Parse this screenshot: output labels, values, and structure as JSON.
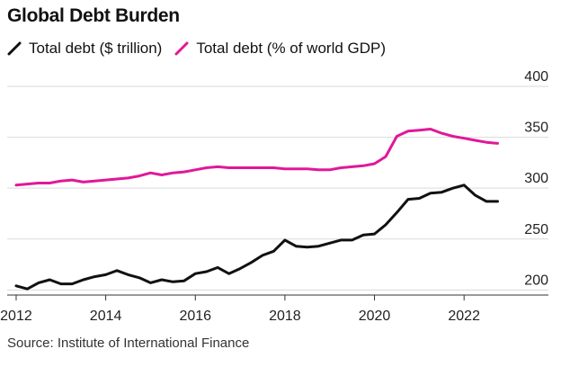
{
  "title": "Global Debt Burden",
  "source": "Source: Institute of International Finance",
  "colors": {
    "debt_trillion": "#111111",
    "debt_pct_gdp": "#e0189a",
    "grid": "#d9d9d9"
  },
  "chart_data": {
    "type": "line",
    "title": "Global Debt Burden",
    "legend_position": "top-left",
    "grid": true,
    "yaxis_position": "right",
    "xlim": [
      2011.8,
      2023.0
    ],
    "xticks": [
      2012,
      2014,
      2016,
      2018,
      2020,
      2022
    ],
    "xtick_labels": [
      "2012",
      "2014",
      "2016",
      "2018",
      "2020",
      "2022"
    ],
    "ylim": [
      195,
      400
    ],
    "yticks": [
      200,
      250,
      300,
      350,
      400
    ],
    "ytick_labels": [
      "200",
      "250",
      "300",
      "350",
      "400"
    ],
    "series": [
      {
        "name": "Total debt ($ trillion)",
        "color": "#111111",
        "x": [
          2012.0,
          2012.25,
          2012.5,
          2012.75,
          2013.0,
          2013.25,
          2013.5,
          2013.75,
          2014.0,
          2014.25,
          2014.5,
          2014.75,
          2015.0,
          2015.25,
          2015.5,
          2015.75,
          2016.0,
          2016.25,
          2016.5,
          2016.75,
          2017.0,
          2017.25,
          2017.5,
          2017.75,
          2018.0,
          2018.25,
          2018.5,
          2018.75,
          2019.0,
          2019.25,
          2019.5,
          2019.75,
          2020.0,
          2020.25,
          2020.5,
          2020.75,
          2021.0,
          2021.25,
          2021.5,
          2021.75,
          2022.0,
          2022.25,
          2022.5,
          2022.75
        ],
        "values": [
          204,
          201,
          207,
          210,
          206,
          206,
          210,
          213,
          215,
          219,
          215,
          212,
          207,
          210,
          208,
          209,
          216,
          218,
          222,
          216,
          221,
          227,
          234,
          238,
          249,
          243,
          242,
          243,
          246,
          249,
          249,
          254,
          255,
          264,
          276,
          289,
          290,
          295,
          296,
          300,
          303,
          293,
          287,
          287
        ]
      },
      {
        "name": "Total debt (% of world GDP)",
        "color": "#e0189a",
        "x": [
          2012.0,
          2012.25,
          2012.5,
          2012.75,
          2013.0,
          2013.25,
          2013.5,
          2013.75,
          2014.0,
          2014.25,
          2014.5,
          2014.75,
          2015.0,
          2015.25,
          2015.5,
          2015.75,
          2016.0,
          2016.25,
          2016.5,
          2016.75,
          2017.0,
          2017.25,
          2017.5,
          2017.75,
          2018.0,
          2018.25,
          2018.5,
          2018.75,
          2019.0,
          2019.25,
          2019.5,
          2019.75,
          2020.0,
          2020.25,
          2020.5,
          2020.75,
          2021.0,
          2021.25,
          2021.5,
          2021.75,
          2022.0,
          2022.25,
          2022.5,
          2022.75
        ],
        "values": [
          303,
          304,
          305,
          305,
          307,
          308,
          306,
          307,
          308,
          309,
          310,
          312,
          315,
          313,
          315,
          316,
          318,
          320,
          321,
          320,
          320,
          320,
          320,
          320,
          319,
          319,
          319,
          318,
          318,
          320,
          321,
          322,
          324,
          331,
          351,
          356,
          357,
          358,
          354,
          351,
          349,
          347,
          345,
          344
        ]
      }
    ]
  }
}
